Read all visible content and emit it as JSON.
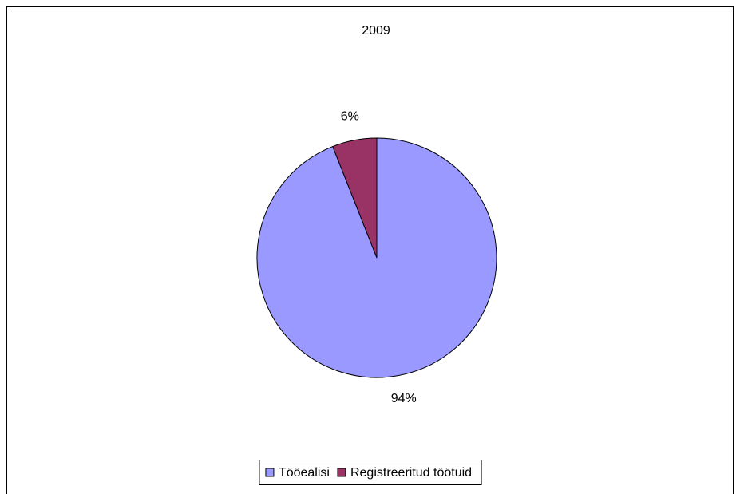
{
  "chart_data": {
    "type": "pie",
    "title": "2009",
    "categories": [
      "Tööealisi",
      "Registreeritud töötuid"
    ],
    "values": [
      94,
      6
    ],
    "value_labels": [
      "94%",
      "6%"
    ],
    "colors": [
      "#9999ff",
      "#993366"
    ],
    "legend": "bottom"
  }
}
